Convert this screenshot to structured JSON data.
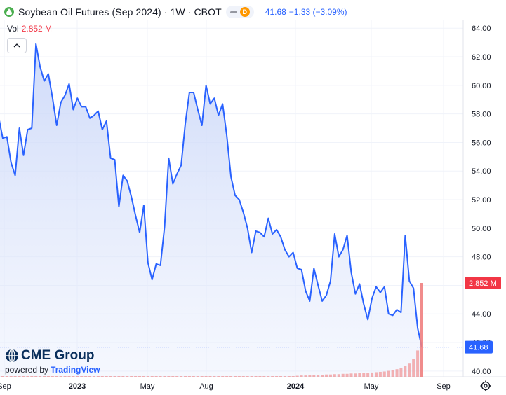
{
  "header": {
    "title": "Soybean Oil Futures (Sep 2024) · 1W · CBOT",
    "last": "41.68",
    "change": "−1.33 (−3.09%)",
    "interval_badge": "D"
  },
  "volume": {
    "label": "Vol",
    "value": "2.852 M"
  },
  "branding": {
    "name": "CME Group",
    "powered_by": "powered by",
    "tradingview": "TradingView"
  },
  "colors": {
    "line": "#2962ff",
    "area": "#e3eafc",
    "volume": "#f08080",
    "price_badge": "#2962ff",
    "vol_badge": "#f23645"
  },
  "icons": {
    "logo": "soybean-drop-icon",
    "collapse": "chevron-up-icon",
    "settings": "gear-icon"
  },
  "chart_data": {
    "type": "area",
    "title": "Soybean Oil Futures (Sep 2024) · 1W · CBOT",
    "y_axis": {
      "ticks": [
        "64.00",
        "62.00",
        "60.00",
        "58.00",
        "56.00",
        "54.00",
        "52.00",
        "50.00",
        "48.00",
        "46.00",
        "44.00",
        "42.00",
        "40.00"
      ],
      "range": [
        39.6,
        64.6
      ]
    },
    "x_axis": {
      "labels": [
        "Sep",
        "2023",
        "May",
        "Aug",
        "2024",
        "May",
        "Sep"
      ]
    },
    "last_price_label": "41.68",
    "volume_label": "2.852 M",
    "grid": true,
    "series": [
      {
        "values": [
          57.8,
          56.3,
          56.4,
          54.6,
          53.7,
          57.0,
          55.1,
          56.9,
          57.0,
          62.9,
          61.3,
          60.3,
          60.8,
          59.1,
          57.2,
          58.8,
          59.3,
          60.1,
          58.3,
          59.1,
          58.5,
          58.5,
          57.7,
          57.9,
          58.2,
          56.9,
          57.5,
          54.9,
          54.8,
          51.5,
          53.7,
          53.3,
          52.2,
          50.9,
          49.7,
          51.6,
          47.6,
          46.4,
          47.5,
          47.4,
          50.1,
          54.9,
          53.1,
          53.8,
          54.4,
          57.3,
          59.5,
          59.5,
          58.3,
          57.2,
          60.0,
          58.7,
          59.1,
          57.9,
          58.7,
          56.5,
          53.6,
          52.3,
          52.0,
          51.1,
          50.0,
          48.3,
          49.8,
          49.7,
          49.4,
          50.7,
          49.6,
          49.9,
          49.4,
          48.5,
          48.0,
          48.3,
          47.2,
          47.1,
          45.6,
          44.9,
          47.2,
          46.0,
          44.9,
          45.3,
          46.3,
          49.6,
          48.0,
          48.5,
          49.5,
          46.9,
          45.4,
          46.1,
          44.7,
          43.6,
          45.1,
          45.9,
          45.5,
          45.9,
          44.0,
          43.9,
          44.3,
          44.1,
          49.5,
          46.3,
          45.8,
          43.0,
          41.68
        ]
      }
    ],
    "volume_series": {
      "values": [
        0.02,
        0.02,
        0.02,
        0.02,
        0.02,
        0.02,
        0.02,
        0.02,
        0.02,
        0.02,
        0.02,
        0.02,
        0.02,
        0.02,
        0.02,
        0.02,
        0.02,
        0.02,
        0.02,
        0.02,
        0.02,
        0.02,
        0.02,
        0.02,
        0.02,
        0.02,
        0.02,
        0.02,
        0.02,
        0.02,
        0.02,
        0.02,
        0.02,
        0.02,
        0.02,
        0.02,
        0.02,
        0.02,
        0.02,
        0.02,
        0.02,
        0.02,
        0.02,
        0.02,
        0.02,
        0.02,
        0.02,
        0.02,
        0.02,
        0.02,
        0.02,
        0.02,
        0.02,
        0.02,
        0.02,
        0.02,
        0.02,
        0.02,
        0.02,
        0.02,
        0.02,
        0.02,
        0.02,
        0.02,
        0.02,
        0.02,
        0.02,
        0.02,
        0.02,
        0.02,
        0.02,
        0.02,
        0.03,
        0.04,
        0.04,
        0.05,
        0.05,
        0.06,
        0.06,
        0.07,
        0.07,
        0.08,
        0.08,
        0.09,
        0.09,
        0.1,
        0.1,
        0.11,
        0.12,
        0.12,
        0.13,
        0.14,
        0.15,
        0.16,
        0.18,
        0.2,
        0.23,
        0.27,
        0.32,
        0.4,
        0.55,
        0.8,
        2.852
      ]
    }
  }
}
